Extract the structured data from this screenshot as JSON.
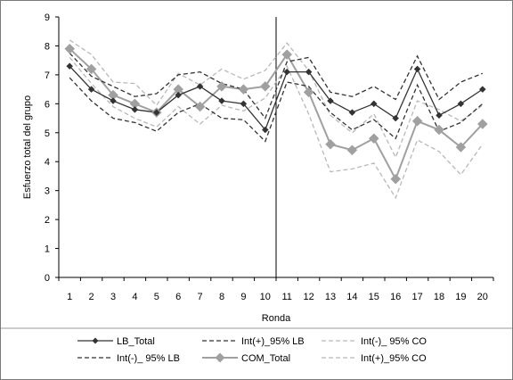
{
  "chart_data": {
    "type": "line",
    "title": "",
    "xlabel": "Ronda",
    "ylabel": "Esfuerzo total del grupo",
    "ylim": [
      0,
      9
    ],
    "yticks": [
      "0",
      "1",
      "2",
      "3",
      "4",
      "5",
      "6",
      "7",
      "8",
      "9"
    ],
    "x": [
      "1",
      "2",
      "3",
      "4",
      "5",
      "6",
      "7",
      "8",
      "9",
      "10",
      "11",
      "12",
      "13",
      "14",
      "15",
      "16",
      "17",
      "18",
      "19",
      "20"
    ],
    "grid": false,
    "legend_position": "bottom",
    "divider_between": [
      "10",
      "11"
    ],
    "series": [
      {
        "name": "LB_Total",
        "color": "#333333",
        "dash": "solid",
        "marker": "diamond-small",
        "values": [
          7.3,
          6.5,
          6.1,
          5.8,
          5.7,
          6.3,
          6.6,
          6.1,
          6.0,
          5.1,
          7.1,
          7.1,
          6.1,
          5.7,
          6.0,
          5.5,
          7.2,
          5.6,
          6.0,
          6.5
        ]
      },
      {
        "name": "Int(-)_ 95% LB",
        "color": "#333333",
        "dash": "dashed",
        "marker": "none",
        "values": [
          6.9,
          6.1,
          5.5,
          5.35,
          5.05,
          5.7,
          6.0,
          5.5,
          5.45,
          4.7,
          6.75,
          6.6,
          5.7,
          5.1,
          5.45,
          4.8,
          6.65,
          5.05,
          5.35,
          6.0
        ]
      },
      {
        "name": "Int(+)_95% LB",
        "color": "#333333",
        "dash": "dashed",
        "marker": "none",
        "values": [
          7.75,
          6.95,
          6.6,
          6.25,
          6.35,
          7.0,
          7.1,
          6.7,
          6.5,
          5.5,
          7.45,
          7.6,
          6.4,
          6.25,
          6.6,
          6.15,
          7.65,
          6.15,
          6.75,
          7.05
        ]
      },
      {
        "name": "COM_Total",
        "color": "#a0a0a0",
        "dash": "solid",
        "marker": "diamond-large",
        "values": [
          7.9,
          7.2,
          6.3,
          6.0,
          5.7,
          6.5,
          5.9,
          6.6,
          6.5,
          6.6,
          7.7,
          6.4,
          4.6,
          4.4,
          4.8,
          3.4,
          5.4,
          5.1,
          4.5,
          5.3
        ]
      },
      {
        "name": "Int(-)_ 95% CO",
        "color": "#b8b8b8",
        "dash": "dashed",
        "marker": "none",
        "values": [
          7.6,
          6.7,
          5.9,
          5.5,
          5.2,
          5.9,
          5.3,
          5.95,
          5.75,
          6.2,
          7.3,
          5.65,
          3.65,
          3.75,
          3.95,
          2.75,
          4.75,
          4.35,
          3.55,
          4.6
        ]
      },
      {
        "name": "Int(+)_95% CO",
        "color": "#b8b8b8",
        "dash": "dashed",
        "marker": "none",
        "values": [
          8.2,
          7.7,
          6.75,
          6.7,
          5.95,
          7.05,
          6.65,
          7.2,
          6.85,
          7.15,
          8.1,
          7.15,
          5.6,
          5.0,
          5.65,
          4.15,
          6.1,
          5.8,
          5.4,
          5.95
        ]
      }
    ]
  }
}
